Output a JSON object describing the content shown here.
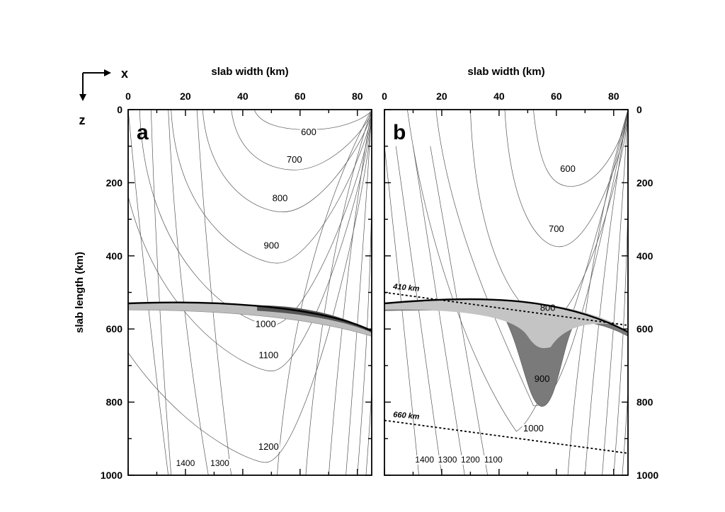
{
  "chart_data": [
    {
      "type": "contour",
      "panel_label": "a",
      "xlabel": "slab width (km)",
      "ylabel": "slab length (km)",
      "xlim": [
        0,
        85
      ],
      "ylim": [
        1000,
        0
      ],
      "x_ticks": [
        0,
        20,
        40,
        60,
        80
      ],
      "y_ticks": [
        0,
        200,
        400,
        600,
        800,
        1000
      ],
      "contour_labels": [
        {
          "text": "600",
          "x": 63,
          "y": 70
        },
        {
          "text": "700",
          "x": 58,
          "y": 145
        },
        {
          "text": "800",
          "x": 53,
          "y": 250
        },
        {
          "text": "900",
          "x": 50,
          "y": 380
        },
        {
          "text": "1000",
          "x": 48,
          "y": 595
        },
        {
          "text": "1100",
          "x": 49,
          "y": 680
        },
        {
          "text": "1200",
          "x": 49,
          "y": 930
        },
        {
          "text": "1400",
          "x": 20,
          "y": 975
        },
        {
          "text": "1300",
          "x": 32,
          "y": 975
        }
      ]
    },
    {
      "type": "contour",
      "panel_label": "b",
      "xlabel": "slab width (km)",
      "ylabel": "",
      "xlim": [
        0,
        85
      ],
      "ylim": [
        1000,
        0
      ],
      "x_ticks": [
        0,
        20,
        40,
        60,
        80
      ],
      "y_ticks": [
        0,
        200,
        400,
        600,
        800,
        1000
      ],
      "contour_labels": [
        {
          "text": "600",
          "x": 64,
          "y": 170
        },
        {
          "text": "700",
          "x": 60,
          "y": 335
        },
        {
          "text": "800",
          "x": 57,
          "y": 550
        },
        {
          "text": "900",
          "x": 55,
          "y": 745
        },
        {
          "text": "1000",
          "x": 52,
          "y": 880
        },
        {
          "text": "1400",
          "x": 14,
          "y": 965
        },
        {
          "text": "1300",
          "x": 22,
          "y": 965
        },
        {
          "text": "1200",
          "x": 30,
          "y": 965
        },
        {
          "text": "1100",
          "x": 38,
          "y": 965
        }
      ],
      "depth_lines": [
        {
          "label": "410 km",
          "x": [
            0,
            85
          ],
          "y": [
            500,
            590
          ]
        },
        {
          "label": "660 km",
          "x": [
            0,
            85
          ],
          "y": [
            850,
            940
          ]
        }
      ]
    }
  ],
  "axes_key": {
    "x": "x",
    "z": "z"
  }
}
